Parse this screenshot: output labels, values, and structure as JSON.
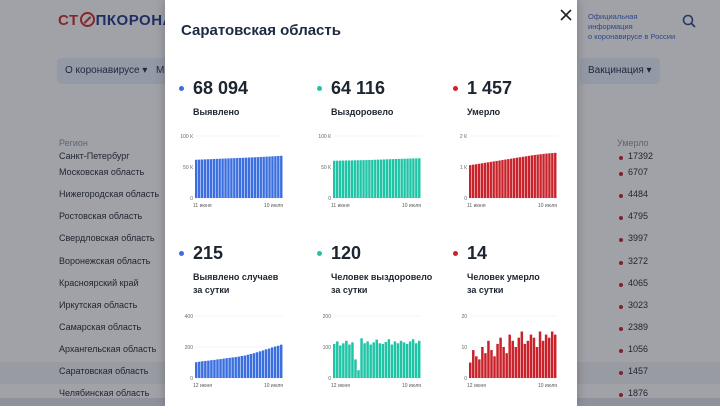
{
  "site": {
    "logo_left": "СТ",
    "logo_right": "ПКОРОНАВИ",
    "official_line1": "Официальная информация",
    "official_line2": "о коронавирусе в России",
    "nav": [
      "О коронавирусе ▾",
      "М",
      "Вакцинация ▾"
    ],
    "table_headers": {
      "region": "Регион",
      "died": "Умерло"
    },
    "rows": [
      {
        "region": "Санкт-Петербург",
        "died": "17392"
      },
      {
        "region": "Московская область",
        "died": "6707"
      },
      {
        "region": "Нижегородская область",
        "died": "4484"
      },
      {
        "region": "Ростовская область",
        "died": "4795"
      },
      {
        "region": "Свердловская область",
        "died": "3997"
      },
      {
        "region": "Воронежская область",
        "died": "3272"
      },
      {
        "region": "Красноярский край",
        "died": "4065"
      },
      {
        "region": "Иркутская область",
        "died": "3023"
      },
      {
        "region": "Самарская область",
        "died": "2389"
      },
      {
        "region": "Архангельская область",
        "died": "1056"
      },
      {
        "region": "Саратовская область",
        "died": "1457"
      },
      {
        "region": "Челябинская область",
        "died": "1876"
      }
    ]
  },
  "modal": {
    "title": "Саратовская область",
    "stats": [
      {
        "value": "68 094",
        "label1": "Выявлено",
        "label2": "",
        "color": "#3b6fe0"
      },
      {
        "value": "64 116",
        "label1": "Выздоровело",
        "label2": "",
        "color": "#1fc4a6"
      },
      {
        "value": "1 457",
        "label1": "Умерло",
        "label2": "",
        "color": "#c9222a"
      },
      {
        "value": "215",
        "label1": "Выявлено случаев",
        "label2": "за сутки",
        "color": "#3b6fe0"
      },
      {
        "value": "120",
        "label1": "Человек выздоровело",
        "label2": "за сутки",
        "color": "#1fc4a6"
      },
      {
        "value": "14",
        "label1": "Человек умерло",
        "label2": "за сутки",
        "color": "#c9222a"
      }
    ]
  },
  "chart_data": [
    {
      "type": "bar",
      "title": "Выявлено",
      "color": "#3b6fe0",
      "ylim": [
        0,
        100000
      ],
      "yticks": [
        "100 К",
        "50 К",
        "0"
      ],
      "x_start": "11 июня",
      "x_end": "10 июля",
      "values": [
        61700,
        61900,
        62100,
        62300,
        62500,
        62700,
        62900,
        63100,
        63300,
        63500,
        63700,
        63900,
        64100,
        64300,
        64500,
        64700,
        64900,
        65100,
        65300,
        65500,
        65700,
        65900,
        66200,
        66400,
        66700,
        66900,
        67200,
        67500,
        67800,
        68094
      ]
    },
    {
      "type": "bar",
      "title": "Выздоровело",
      "color": "#1fc4a6",
      "ylim": [
        0,
        100000
      ],
      "yticks": [
        "100 К",
        "50 К",
        "0"
      ],
      "x_start": "11 июня",
      "x_end": "10 июля",
      "values": [
        60100,
        60200,
        60300,
        60400,
        60500,
        60600,
        60700,
        60800,
        60900,
        61000,
        61100,
        61200,
        61400,
        61500,
        61700,
        61900,
        62000,
        62200,
        62400,
        62600,
        62700,
        62900,
        63100,
        63200,
        63400,
        63500,
        63700,
        63800,
        63950,
        64116
      ]
    },
    {
      "type": "bar",
      "title": "Умерло",
      "color": "#c9222a",
      "ylim": [
        0,
        2000
      ],
      "yticks": [
        "2 К",
        "1 К",
        "0"
      ],
      "x_start": "11 июня",
      "x_end": "10 июля",
      "values": [
        1060,
        1075,
        1090,
        1105,
        1120,
        1135,
        1150,
        1165,
        1180,
        1195,
        1210,
        1225,
        1240,
        1255,
        1270,
        1285,
        1300,
        1315,
        1330,
        1345,
        1360,
        1375,
        1388,
        1400,
        1412,
        1423,
        1433,
        1442,
        1450,
        1457
      ]
    },
    {
      "type": "bar",
      "title": "Выявлено случаев за сутки",
      "color": "#3b6fe0",
      "ylim": [
        0,
        400
      ],
      "yticks": [
        "400",
        "200",
        "0"
      ],
      "x_start": "12 июня",
      "x_end": "10 июля",
      "values": [
        102,
        105,
        108,
        110,
        112,
        115,
        117,
        120,
        122,
        125,
        128,
        130,
        133,
        135,
        138,
        142,
        145,
        150,
        155,
        160,
        166,
        172,
        178,
        185,
        190,
        197,
        203,
        208,
        215
      ]
    },
    {
      "type": "bar",
      "title": "Человек выздоровело за сутки",
      "color": "#1fc4a6",
      "ylim": [
        0,
        200
      ],
      "yticks": [
        "200",
        "100",
        "0"
      ],
      "x_start": "12 июня",
      "x_end": "10 июля",
      "values": [
        110,
        118,
        105,
        112,
        120,
        108,
        115,
        60,
        25,
        128,
        112,
        118,
        108,
        115,
        124,
        112,
        110,
        116,
        125,
        108,
        118,
        112,
        120,
        115,
        110,
        118,
        125,
        112,
        120
      ]
    },
    {
      "type": "bar",
      "title": "Человек умерло за сутки",
      "color": "#c9222a",
      "ylim": [
        0,
        20
      ],
      "yticks": [
        "20",
        "10",
        "0"
      ],
      "x_start": "12 июня",
      "x_end": "10 июля",
      "values": [
        5,
        9,
        7,
        6,
        10,
        8,
        12,
        9,
        7,
        11,
        13,
        10,
        8,
        14,
        12,
        10,
        13,
        15,
        11,
        12,
        14,
        13,
        10,
        15,
        12,
        14,
        13,
        15,
        14
      ]
    }
  ]
}
